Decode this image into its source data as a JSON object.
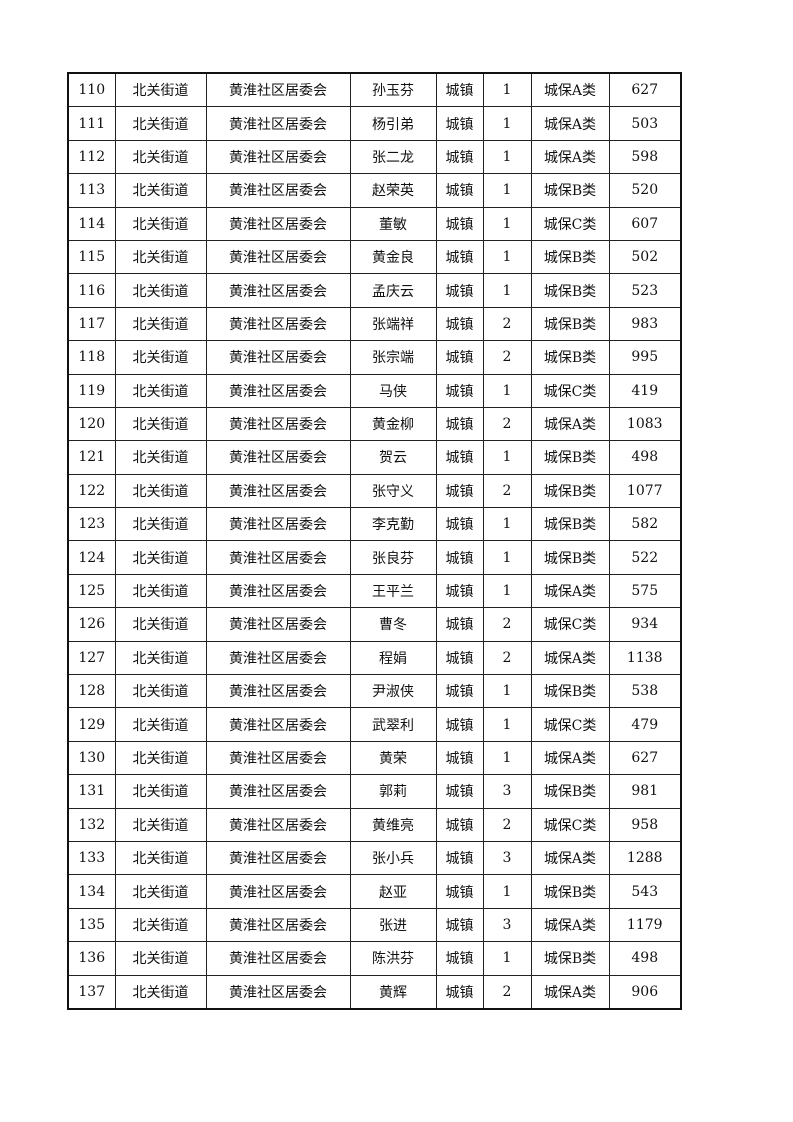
{
  "table": {
    "rows": [
      [
        "110",
        "北关街道",
        "黄淮社区居委会",
        "孙玉芬",
        "城镇",
        "1",
        "城保A类",
        "627"
      ],
      [
        "111",
        "北关街道",
        "黄淮社区居委会",
        "杨引弟",
        "城镇",
        "1",
        "城保A类",
        "503"
      ],
      [
        "112",
        "北关街道",
        "黄淮社区居委会",
        "张二龙",
        "城镇",
        "1",
        "城保A类",
        "598"
      ],
      [
        "113",
        "北关街道",
        "黄淮社区居委会",
        "赵荣英",
        "城镇",
        "1",
        "城保B类",
        "520"
      ],
      [
        "114",
        "北关街道",
        "黄淮社区居委会",
        "董敏",
        "城镇",
        "1",
        "城保C类",
        "607"
      ],
      [
        "115",
        "北关街道",
        "黄淮社区居委会",
        "黄金良",
        "城镇",
        "1",
        "城保B类",
        "502"
      ],
      [
        "116",
        "北关街道",
        "黄淮社区居委会",
        "孟庆云",
        "城镇",
        "1",
        "城保B类",
        "523"
      ],
      [
        "117",
        "北关街道",
        "黄淮社区居委会",
        "张端祥",
        "城镇",
        "2",
        "城保B类",
        "983"
      ],
      [
        "118",
        "北关街道",
        "黄淮社区居委会",
        "张宗端",
        "城镇",
        "2",
        "城保B类",
        "995"
      ],
      [
        "119",
        "北关街道",
        "黄淮社区居委会",
        "马侠",
        "城镇",
        "1",
        "城保C类",
        "419"
      ],
      [
        "120",
        "北关街道",
        "黄淮社区居委会",
        "黄金柳",
        "城镇",
        "2",
        "城保A类",
        "1083"
      ],
      [
        "121",
        "北关街道",
        "黄淮社区居委会",
        "贺云",
        "城镇",
        "1",
        "城保B类",
        "498"
      ],
      [
        "122",
        "北关街道",
        "黄淮社区居委会",
        "张守义",
        "城镇",
        "2",
        "城保B类",
        "1077"
      ],
      [
        "123",
        "北关街道",
        "黄淮社区居委会",
        "李克勤",
        "城镇",
        "1",
        "城保B类",
        "582"
      ],
      [
        "124",
        "北关街道",
        "黄淮社区居委会",
        "张良芬",
        "城镇",
        "1",
        "城保B类",
        "522"
      ],
      [
        "125",
        "北关街道",
        "黄淮社区居委会",
        "王平兰",
        "城镇",
        "1",
        "城保A类",
        "575"
      ],
      [
        "126",
        "北关街道",
        "黄淮社区居委会",
        "曹冬",
        "城镇",
        "2",
        "城保C类",
        "934"
      ],
      [
        "127",
        "北关街道",
        "黄淮社区居委会",
        "程娟",
        "城镇",
        "2",
        "城保A类",
        "1138"
      ],
      [
        "128",
        "北关街道",
        "黄淮社区居委会",
        "尹淑侠",
        "城镇",
        "1",
        "城保B类",
        "538"
      ],
      [
        "129",
        "北关街道",
        "黄淮社区居委会",
        "武翠利",
        "城镇",
        "1",
        "城保C类",
        "479"
      ],
      [
        "130",
        "北关街道",
        "黄淮社区居委会",
        "黄荣",
        "城镇",
        "1",
        "城保A类",
        "627"
      ],
      [
        "131",
        "北关街道",
        "黄淮社区居委会",
        "郭莉",
        "城镇",
        "3",
        "城保B类",
        "981"
      ],
      [
        "132",
        "北关街道",
        "黄淮社区居委会",
        "黄维亮",
        "城镇",
        "2",
        "城保C类",
        "958"
      ],
      [
        "133",
        "北关街道",
        "黄淮社区居委会",
        "张小兵",
        "城镇",
        "3",
        "城保A类",
        "1288"
      ],
      [
        "134",
        "北关街道",
        "黄淮社区居委会",
        "赵亚",
        "城镇",
        "1",
        "城保B类",
        "543"
      ],
      [
        "135",
        "北关街道",
        "黄淮社区居委会",
        "张进",
        "城镇",
        "3",
        "城保A类",
        "1179"
      ],
      [
        "136",
        "北关街道",
        "黄淮社区居委会",
        "陈洪芬",
        "城镇",
        "1",
        "城保B类",
        "498"
      ],
      [
        "137",
        "北关街道",
        "黄淮社区居委会",
        "黄辉",
        "城镇",
        "2",
        "城保A类",
        "906"
      ]
    ]
  }
}
